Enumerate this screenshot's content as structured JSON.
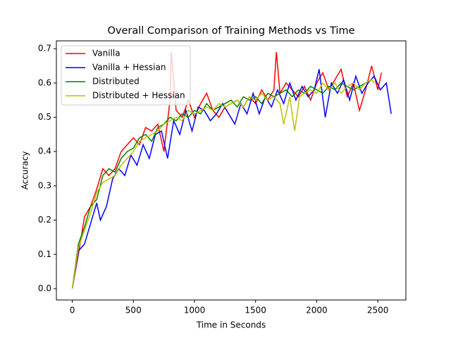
{
  "chart_data": {
    "type": "line",
    "title": "Overall Comparison of Training Methods vs Time",
    "xlabel": "Time in Seconds",
    "ylabel": "Accuracy",
    "xlim": [
      -130,
      2730
    ],
    "ylim": [
      -0.033,
      0.723
    ],
    "xticks": [
      0,
      500,
      1000,
      1500,
      2000,
      2500
    ],
    "yticks": [
      {
        "value": 0,
        "label": "0.0"
      },
      0.1,
      0.2,
      0.3,
      0.4,
      0.5,
      0.6,
      0.7
    ],
    "legend": "upper left",
    "series": [
      {
        "name": "Vanilla",
        "color": "#ff0000",
        "x": [
          0,
          50,
          100,
          150,
          200,
          250,
          300,
          350,
          400,
          450,
          500,
          550,
          600,
          650,
          700,
          750,
          800,
          810,
          850,
          900,
          950,
          1000,
          1050,
          1100,
          1150,
          1200,
          1250,
          1300,
          1350,
          1400,
          1450,
          1500,
          1550,
          1600,
          1650,
          1670,
          1700,
          1750,
          1800,
          1850,
          1900,
          1950,
          2000,
          2050,
          2100,
          2150,
          2200,
          2250,
          2300,
          2350,
          2400,
          2450,
          2500,
          2530
        ],
        "values": [
          0.0,
          0.1,
          0.21,
          0.24,
          0.29,
          0.35,
          0.33,
          0.35,
          0.4,
          0.42,
          0.44,
          0.42,
          0.47,
          0.46,
          0.48,
          0.4,
          0.55,
          0.69,
          0.52,
          0.5,
          0.55,
          0.5,
          0.54,
          0.57,
          0.52,
          0.5,
          0.53,
          0.54,
          0.55,
          0.53,
          0.56,
          0.54,
          0.58,
          0.55,
          0.58,
          0.69,
          0.57,
          0.6,
          0.58,
          0.56,
          0.59,
          0.55,
          0.6,
          0.63,
          0.58,
          0.61,
          0.64,
          0.56,
          0.6,
          0.52,
          0.58,
          0.65,
          0.58,
          0.63
        ]
      },
      {
        "name": "Vanilla + Hessian",
        "color": "#0000ff",
        "x": [
          0,
          50,
          100,
          150,
          200,
          230,
          280,
          330,
          380,
          430,
          480,
          530,
          580,
          630,
          680,
          730,
          780,
          830,
          880,
          930,
          980,
          1030,
          1080,
          1130,
          1180,
          1230,
          1280,
          1330,
          1380,
          1430,
          1480,
          1530,
          1580,
          1630,
          1680,
          1730,
          1780,
          1830,
          1880,
          1930,
          1980,
          2020,
          2070,
          2120,
          2170,
          2220,
          2270,
          2320,
          2370,
          2420,
          2470,
          2520,
          2570,
          2610
        ],
        "values": [
          0.0,
          0.11,
          0.13,
          0.19,
          0.25,
          0.2,
          0.24,
          0.32,
          0.35,
          0.33,
          0.39,
          0.36,
          0.42,
          0.38,
          0.45,
          0.46,
          0.38,
          0.49,
          0.45,
          0.52,
          0.46,
          0.53,
          0.52,
          0.49,
          0.51,
          0.54,
          0.51,
          0.48,
          0.54,
          0.51,
          0.57,
          0.51,
          0.56,
          0.53,
          0.58,
          0.54,
          0.6,
          0.55,
          0.59,
          0.56,
          0.58,
          0.64,
          0.5,
          0.6,
          0.57,
          0.61,
          0.55,
          0.62,
          0.57,
          0.6,
          0.62,
          0.58,
          0.6,
          0.51
        ]
      },
      {
        "name": "Distributed",
        "color": "#008000",
        "x": [
          0,
          50,
          100,
          150,
          200,
          250,
          300,
          350,
          400,
          450,
          500,
          550,
          600,
          650,
          700,
          750,
          800,
          850,
          900,
          950,
          1000,
          1050,
          1100,
          1150,
          1200,
          1250,
          1300,
          1350,
          1400,
          1450,
          1500,
          1550,
          1600,
          1650,
          1700,
          1750,
          1800,
          1850,
          1900,
          1950,
          2000,
          2050,
          2100,
          2150,
          2200,
          2250,
          2300,
          2350,
          2400,
          2450,
          2470
        ],
        "values": [
          0.0,
          0.13,
          0.18,
          0.24,
          0.26,
          0.33,
          0.35,
          0.34,
          0.38,
          0.4,
          0.41,
          0.44,
          0.45,
          0.43,
          0.47,
          0.48,
          0.5,
          0.49,
          0.51,
          0.5,
          0.52,
          0.51,
          0.54,
          0.52,
          0.53,
          0.54,
          0.55,
          0.53,
          0.56,
          0.55,
          0.56,
          0.54,
          0.57,
          0.56,
          0.57,
          0.58,
          0.56,
          0.58,
          0.57,
          0.59,
          0.58,
          0.57,
          0.59,
          0.58,
          0.6,
          0.59,
          0.58,
          0.59,
          0.6,
          0.61,
          0.6
        ]
      },
      {
        "name": "Distributed + Hessian",
        "color": "#bfbf00",
        "x": [
          0,
          50,
          100,
          150,
          200,
          250,
          300,
          350,
          400,
          450,
          500,
          550,
          600,
          650,
          700,
          750,
          800,
          850,
          900,
          950,
          1000,
          1050,
          1100,
          1150,
          1200,
          1250,
          1300,
          1350,
          1400,
          1450,
          1500,
          1550,
          1600,
          1650,
          1700,
          1730,
          1780,
          1820,
          1860,
          1900,
          1950,
          2000,
          2050,
          2100,
          2150,
          2200,
          2250,
          2300,
          2350,
          2400,
          2450,
          2470
        ],
        "values": [
          0.0,
          0.12,
          0.17,
          0.22,
          0.28,
          0.31,
          0.32,
          0.33,
          0.36,
          0.38,
          0.4,
          0.43,
          0.44,
          0.45,
          0.46,
          0.48,
          0.49,
          0.5,
          0.49,
          0.52,
          0.51,
          0.52,
          0.53,
          0.52,
          0.54,
          0.53,
          0.54,
          0.55,
          0.53,
          0.56,
          0.55,
          0.57,
          0.55,
          0.56,
          0.54,
          0.48,
          0.56,
          0.46,
          0.56,
          0.57,
          0.58,
          0.57,
          0.6,
          0.58,
          0.6,
          0.57,
          0.59,
          0.6,
          0.58,
          0.6,
          0.61,
          0.6
        ]
      }
    ]
  }
}
